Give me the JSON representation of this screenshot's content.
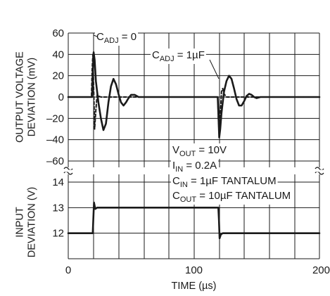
{
  "chart_data": {
    "type": "line",
    "x_axis": {
      "label": "TIME (µs)",
      "range": [
        0,
        200
      ],
      "ticks": [
        0,
        100,
        200
      ],
      "tick_labels": [
        "0",
        "100",
        "200"
      ]
    },
    "top_panel": {
      "ylabel_lines": [
        "OUTPUT VOLTAGE",
        "DEVIATION (mV)"
      ],
      "y_range": [
        -60,
        60
      ],
      "y_ticks": [
        60,
        40,
        20,
        0,
        -20,
        -40,
        -60
      ],
      "y_tick_labels": [
        "60",
        "40",
        "20",
        "0",
        "–20",
        "–40",
        "–60"
      ],
      "series": [
        {
          "name": "CADJ = 1µF",
          "style": "solid",
          "x": [
            0,
            19,
            19.5,
            20.2,
            21,
            22,
            24,
            26,
            28,
            30,
            32,
            34,
            36,
            38,
            40,
            42,
            44,
            46,
            48,
            50,
            53,
            56,
            60,
            65,
            70,
            80,
            90,
            100,
            110,
            118,
            119,
            119.5,
            120.2,
            121,
            122,
            124,
            126,
            128,
            130,
            132,
            134,
            136,
            138,
            140,
            142,
            144,
            146,
            148,
            150,
            153,
            156,
            160,
            165,
            170,
            180,
            190,
            200
          ],
          "y": [
            0,
            0,
            18,
            42,
            35,
            15,
            -5,
            -20,
            -31,
            -25,
            -5,
            10,
            17,
            12,
            3,
            -5,
            -8,
            -5,
            -1,
            2,
            2,
            0,
            0,
            0,
            0,
            0,
            0,
            0,
            0,
            0,
            0,
            -15,
            -38,
            -30,
            -15,
            5,
            15,
            20,
            17,
            8,
            -2,
            -8,
            -8,
            -4,
            1,
            3,
            2,
            0,
            -1,
            0,
            0,
            0,
            0,
            0,
            0,
            0,
            0
          ]
        },
        {
          "name": "CADJ = 0",
          "style": "dashed",
          "x": [
            0,
            18.5,
            19,
            19.6,
            20.2,
            21,
            22,
            23,
            24,
            26,
            30,
            40,
            118.5,
            119,
            119.6,
            120.2,
            121,
            122,
            123,
            124,
            126,
            130,
            140,
            200
          ],
          "y": [
            0,
            0,
            25,
            40,
            10,
            -30,
            -12,
            2,
            1,
            0,
            0,
            0,
            0,
            0,
            -22,
            -35,
            -20,
            5,
            8,
            3,
            0,
            0,
            0,
            0
          ]
        }
      ],
      "annotations": [
        {
          "main": "C",
          "sub": "ADJ",
          "rest": " = 0"
        },
        {
          "main": "C",
          "sub": "ADJ",
          "rest": " = 1µF"
        }
      ]
    },
    "bottom_panel": {
      "ylabel_lines": [
        "INPUT",
        "DEVIATION (V)"
      ],
      "y_range": [
        11,
        14
      ],
      "y_ticks": [
        14,
        13,
        12
      ],
      "y_tick_labels": [
        "14",
        "13",
        "12"
      ],
      "series": [
        {
          "name": "input",
          "style": "solid",
          "x": [
            0,
            19.5,
            20.5,
            21.5,
            23,
            119.5,
            120,
            120.5,
            121.5,
            123,
            200
          ],
          "y": [
            12,
            12,
            13.2,
            12.95,
            13,
            13,
            12.5,
            11.8,
            11.95,
            12,
            12
          ]
        }
      ]
    },
    "conditions": [
      {
        "main": "V",
        "sub": "OUT",
        "rest": " = 10V"
      },
      {
        "main": "I",
        "sub": "IN",
        "rest": " = 0.2A"
      },
      {
        "main": "C",
        "sub": "IN",
        "rest": " = 1µF TANTALUM"
      },
      {
        "main": "C",
        "sub": "OUT",
        "rest": " = 10µF TANTALUM"
      }
    ],
    "grid": true
  }
}
